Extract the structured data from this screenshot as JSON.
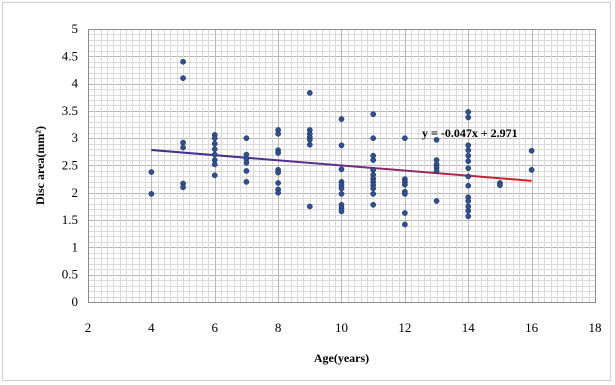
{
  "chart_data": {
    "type": "scatter",
    "title": "",
    "xlabel": "Age(years)",
    "ylabel": "Disc area(mm²)",
    "xlim": [
      2,
      18
    ],
    "ylim": [
      0,
      5
    ],
    "x_ticks": [
      "2",
      "4",
      "6",
      "8",
      "10",
      "12",
      "14",
      "16",
      "18"
    ],
    "y_ticks": [
      "0",
      "0.5",
      "1",
      "1.5",
      "2",
      "2.5",
      "3",
      "3.5",
      "4",
      "4.5",
      "5"
    ],
    "grid": true,
    "legend": "none",
    "point_color": "#2f4f8f",
    "trendline": {
      "equation_label": "y = -0.047x + 2.971",
      "slope": -0.047,
      "intercept": 2.971,
      "x_range": [
        4,
        16
      ],
      "color_start": "#3a2f8f",
      "color_end": "#e02020"
    },
    "points": [
      [
        4,
        2.38
      ],
      [
        4,
        1.98
      ],
      [
        5,
        4.4
      ],
      [
        5,
        4.1
      ],
      [
        5,
        2.92
      ],
      [
        5,
        2.83
      ],
      [
        5,
        2.17
      ],
      [
        5,
        2.1
      ],
      [
        6,
        3.06
      ],
      [
        6,
        3.0
      ],
      [
        6,
        2.9
      ],
      [
        6,
        2.8
      ],
      [
        6,
        2.7
      ],
      [
        6,
        2.6
      ],
      [
        6,
        2.52
      ],
      [
        6,
        2.32
      ],
      [
        7,
        3.0
      ],
      [
        7,
        2.7
      ],
      [
        7,
        2.62
      ],
      [
        7,
        2.55
      ],
      [
        7,
        2.4
      ],
      [
        7,
        2.2
      ],
      [
        8,
        3.15
      ],
      [
        8,
        3.08
      ],
      [
        8,
        2.78
      ],
      [
        8,
        2.73
      ],
      [
        8,
        2.42
      ],
      [
        8,
        2.37
      ],
      [
        8,
        2.18
      ],
      [
        8,
        2.06
      ],
      [
        8,
        2.0
      ],
      [
        9,
        3.83
      ],
      [
        9,
        3.15
      ],
      [
        9,
        3.08
      ],
      [
        9,
        3.02
      ],
      [
        9,
        2.97
      ],
      [
        9,
        2.88
      ],
      [
        9,
        1.75
      ],
      [
        10,
        3.35
      ],
      [
        10,
        2.87
      ],
      [
        10,
        2.43
      ],
      [
        10,
        2.2
      ],
      [
        10,
        2.14
      ],
      [
        10,
        2.08
      ],
      [
        10,
        1.98
      ],
      [
        10,
        1.78
      ],
      [
        10,
        1.72
      ],
      [
        10,
        1.66
      ],
      [
        11,
        3.44
      ],
      [
        11,
        3.0
      ],
      [
        11,
        2.68
      ],
      [
        11,
        2.6
      ],
      [
        11,
        2.42
      ],
      [
        11,
        2.33
      ],
      [
        11,
        2.26
      ],
      [
        11,
        2.2
      ],
      [
        11,
        2.14
      ],
      [
        11,
        2.08
      ],
      [
        11,
        1.98
      ],
      [
        11,
        1.78
      ],
      [
        12,
        3.0
      ],
      [
        12,
        2.25
      ],
      [
        12,
        2.2
      ],
      [
        12,
        2.15
      ],
      [
        12,
        2.02
      ],
      [
        12,
        1.98
      ],
      [
        12,
        1.63
      ],
      [
        12,
        1.42
      ],
      [
        13,
        2.97
      ],
      [
        13,
        2.6
      ],
      [
        13,
        2.52
      ],
      [
        13,
        2.46
      ],
      [
        13,
        2.4
      ],
      [
        13,
        1.85
      ],
      [
        14,
        3.48
      ],
      [
        14,
        3.38
      ],
      [
        14,
        2.87
      ],
      [
        14,
        2.78
      ],
      [
        14,
        2.68
      ],
      [
        14,
        2.58
      ],
      [
        14,
        2.45
      ],
      [
        14,
        2.3
      ],
      [
        14,
        2.13
      ],
      [
        14,
        1.92
      ],
      [
        14,
        1.85
      ],
      [
        14,
        1.75
      ],
      [
        14,
        1.67
      ],
      [
        14,
        1.57
      ],
      [
        15,
        2.18
      ],
      [
        15,
        2.14
      ],
      [
        16,
        2.77
      ],
      [
        16,
        2.42
      ]
    ]
  }
}
